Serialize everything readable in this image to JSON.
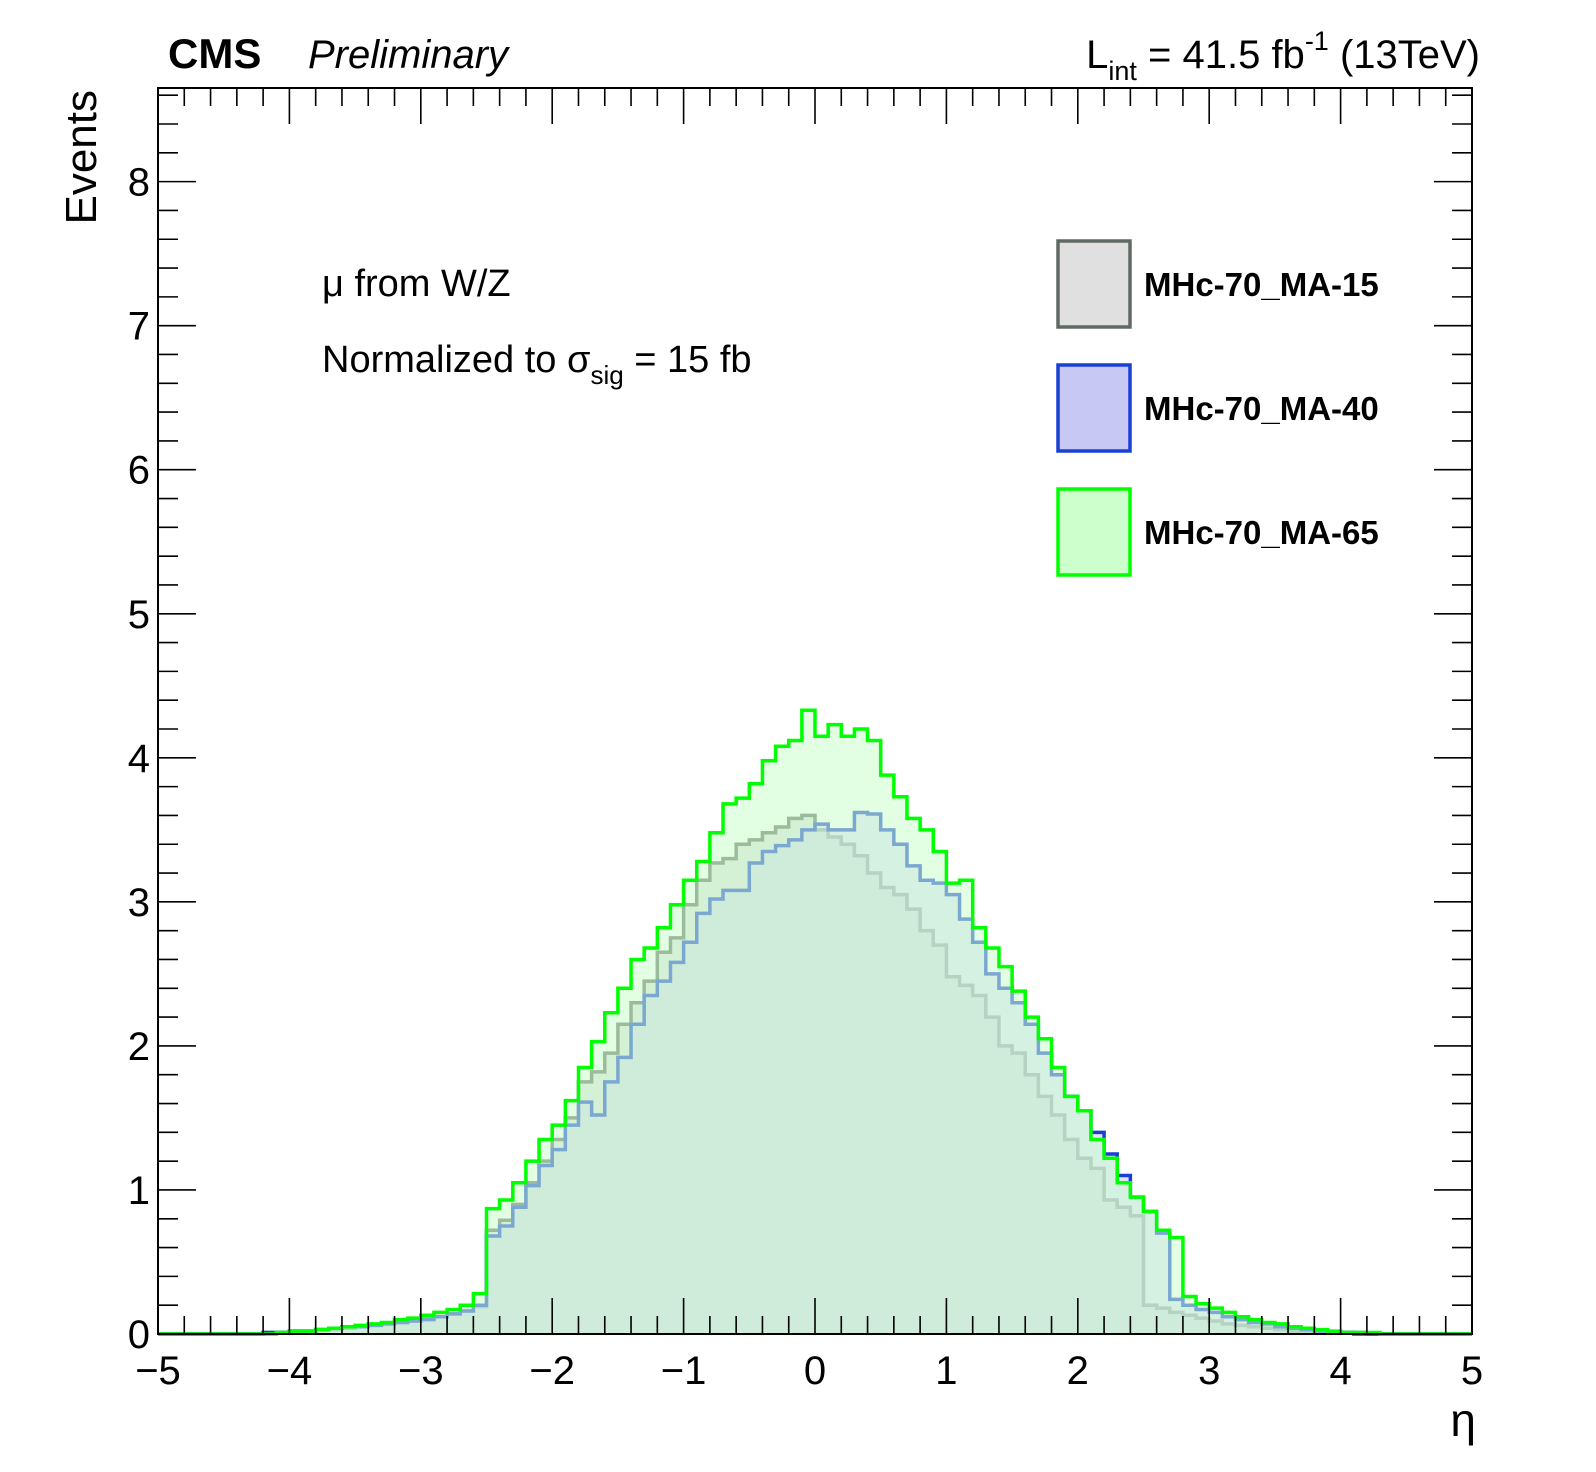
{
  "header": {
    "experiment": "CMS",
    "status": "Preliminary",
    "lumi_prefix": "L",
    "lumi_sub": "int",
    "lumi_value": " = 41.5 fb",
    "lumi_sup": "-1",
    "energy": " (13TeV)"
  },
  "annotations": {
    "line1": "μ from W/Z",
    "line2_prefix": "Normalized to σ",
    "line2_sub": "sig",
    "line2_suffix": " = 15 fb"
  },
  "chart_data": {
    "type": "histogram",
    "xlabel": "η",
    "ylabel": "Events",
    "xlim": [
      -5,
      5
    ],
    "ylim": [
      0,
      8.65
    ],
    "bin_edges_start": -5,
    "bin_width": 0.1,
    "x_ticks": [
      -5,
      -4,
      -3,
      -2,
      -1,
      0,
      1,
      2,
      3,
      4,
      5
    ],
    "x_tick_labels": [
      "−5",
      "−4",
      "−3",
      "−2",
      "−1",
      "0",
      "1",
      "2",
      "3",
      "4",
      "5"
    ],
    "y_ticks": [
      0,
      1,
      2,
      3,
      4,
      5,
      6,
      7,
      8
    ],
    "y_tick_labels": [
      "0",
      "1",
      "2",
      "3",
      "4",
      "5",
      "6",
      "7",
      "8"
    ],
    "legend_position": "top-right",
    "series": [
      {
        "name": "MHc-70_MA-15",
        "line_color": "#5f6a63",
        "fill_color": "#e0e0e0",
        "values": [
          0,
          0,
          0,
          0,
          0,
          0,
          0,
          0,
          0.01,
          0.01,
          0.02,
          0.02,
          0.03,
          0.03,
          0.04,
          0.05,
          0.06,
          0.07,
          0.08,
          0.09,
          0.11,
          0.12,
          0.14,
          0.16,
          0.19,
          0.72,
          0.79,
          0.9,
          1.05,
          1.2,
          1.35,
          1.5,
          1.75,
          1.82,
          1.95,
          2.15,
          2.3,
          2.45,
          2.65,
          2.75,
          2.98,
          3.15,
          3.27,
          3.3,
          3.4,
          3.43,
          3.48,
          3.52,
          3.58,
          3.6,
          3.5,
          3.45,
          3.4,
          3.32,
          3.2,
          3.1,
          3.05,
          2.95,
          2.8,
          2.7,
          2.48,
          2.42,
          2.35,
          2.2,
          2.0,
          1.95,
          1.8,
          1.65,
          1.52,
          1.35,
          1.22,
          1.15,
          0.93,
          0.88,
          0.82,
          0.2,
          0.18,
          0.15,
          0.13,
          0.11,
          0.09,
          0.07,
          0.06,
          0.05,
          0.04,
          0.03,
          0.02,
          0.02,
          0.01,
          0.01,
          0.01,
          0.01,
          0,
          0,
          0,
          0,
          0,
          0,
          0,
          0
        ]
      },
      {
        "name": "MHc-70_MA-40",
        "line_color": "#1a3fd4",
        "fill_color": "#c8c8f5",
        "values": [
          0,
          0,
          0,
          0,
          0,
          0,
          0,
          0,
          0.01,
          0.01,
          0.02,
          0.02,
          0.03,
          0.04,
          0.05,
          0.05,
          0.06,
          0.07,
          0.08,
          0.09,
          0.1,
          0.12,
          0.14,
          0.16,
          0.2,
          0.68,
          0.75,
          0.88,
          1.03,
          1.17,
          1.28,
          1.45,
          1.61,
          1.52,
          1.75,
          1.92,
          2.15,
          2.35,
          2.45,
          2.58,
          2.72,
          2.92,
          3.02,
          3.08,
          3.08,
          3.27,
          3.35,
          3.39,
          3.43,
          3.5,
          3.54,
          3.5,
          3.5,
          3.62,
          3.61,
          3.5,
          3.4,
          3.25,
          3.15,
          3.13,
          3.05,
          2.88,
          2.72,
          2.5,
          2.4,
          2.3,
          2.15,
          1.95,
          1.8,
          1.65,
          1.55,
          1.4,
          1.25,
          1.1,
          0.95,
          0.85,
          0.7,
          0.24,
          0.2,
          0.17,
          0.15,
          0.12,
          0.1,
          0.08,
          0.07,
          0.05,
          0.04,
          0.03,
          0.02,
          0.01,
          0.01,
          0,
          0,
          0,
          0,
          0,
          0,
          0,
          0,
          0
        ]
      },
      {
        "name": "MHc-70_MA-65",
        "line_color": "#00ff00",
        "fill_color": "#ccffcc",
        "values": [
          0,
          0,
          0,
          0,
          0,
          0,
          0,
          0,
          0,
          0.01,
          0.02,
          0.02,
          0.03,
          0.04,
          0.05,
          0.06,
          0.07,
          0.08,
          0.1,
          0.11,
          0.13,
          0.15,
          0.17,
          0.2,
          0.28,
          0.87,
          0.93,
          1.05,
          1.2,
          1.35,
          1.45,
          1.62,
          1.85,
          2.03,
          2.23,
          2.4,
          2.6,
          2.68,
          2.82,
          2.98,
          3.15,
          3.28,
          3.48,
          3.68,
          3.72,
          3.82,
          3.98,
          4.08,
          4.12,
          4.33,
          4.15,
          4.23,
          4.15,
          4.2,
          4.12,
          3.88,
          3.73,
          3.58,
          3.5,
          3.35,
          3.13,
          3.15,
          2.82,
          2.68,
          2.55,
          2.38,
          2.2,
          2.05,
          1.85,
          1.65,
          1.55,
          1.35,
          1.22,
          1.05,
          0.95,
          0.85,
          0.72,
          0.67,
          0.26,
          0.21,
          0.18,
          0.15,
          0.12,
          0.1,
          0.08,
          0.07,
          0.05,
          0.04,
          0.03,
          0.02,
          0.01,
          0.01,
          0.01,
          0,
          0,
          0,
          0,
          0,
          0,
          0
        ]
      }
    ]
  }
}
